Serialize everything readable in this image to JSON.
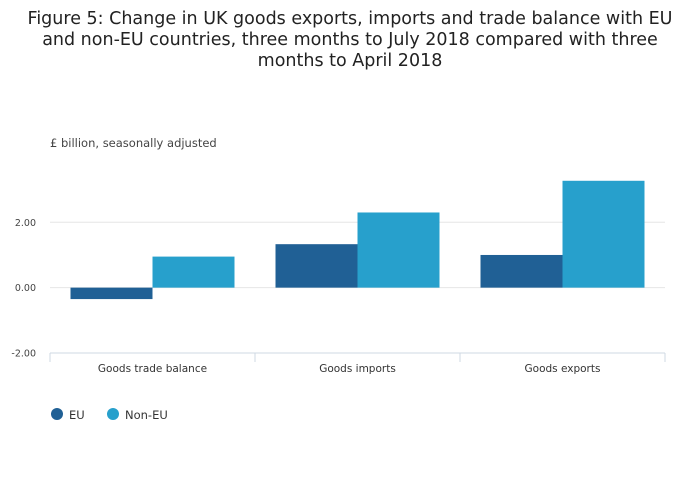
{
  "chart_data": {
    "type": "bar",
    "title_lines": [
      "Figure 5: Change in UK goods exports, imports and trade balance with EU",
      "and non-EU countries, three months to July 2018 compared with three",
      "months to April 2018"
    ],
    "subtitle": "£ billion, seasonally adjusted",
    "categories": [
      "Goods trade balance",
      "Goods imports",
      "Goods exports"
    ],
    "series": [
      {
        "name": "EU",
        "color": "#206095",
        "values": [
          -0.35,
          1.33,
          1.0
        ]
      },
      {
        "name": "Non-EU",
        "color": "#27a0cc",
        "values": [
          0.95,
          2.3,
          3.27
        ]
      }
    ],
    "ylim": [
      -2.0,
      3.6
    ],
    "yticks": [
      -2.0,
      0.0,
      2.0
    ],
    "ytick_labels": [
      "-2.00",
      "0.00",
      "2.00"
    ],
    "legend_position": "bottom-left",
    "grid": true
  }
}
